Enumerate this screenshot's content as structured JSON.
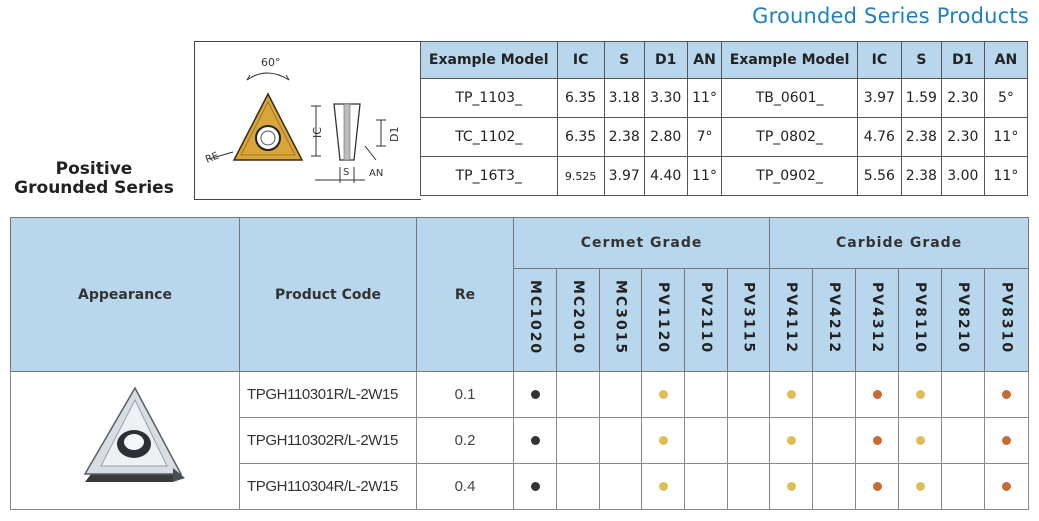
{
  "title": "Grounded Series Products",
  "series_label_line1": "Positive",
  "series_label_line2": "Grounded Series",
  "diagram": {
    "angle_label": "60°",
    "labels": [
      "RE",
      "IC",
      "D1",
      "S",
      "AN"
    ]
  },
  "spec_table": {
    "headers_left": [
      "Example Model",
      "IC",
      "S",
      "D1",
      "AN"
    ],
    "headers_right": [
      "Example Model",
      "IC",
      "S",
      "D1",
      "AN"
    ],
    "rows": [
      {
        "left": [
          "TP_1103_",
          "6.35",
          "3.18",
          "3.30",
          "11°"
        ],
        "right": [
          "TB_0601_",
          "3.97",
          "1.59",
          "2.30",
          "5°"
        ]
      },
      {
        "left": [
          "TC_1102_",
          "6.35",
          "2.38",
          "2.80",
          "7°"
        ],
        "right": [
          "TP_0802_",
          "4.76",
          "2.38",
          "2.30",
          "11°"
        ]
      },
      {
        "left": [
          "TP_16T3_",
          "9.525",
          "3.97",
          "4.40",
          "11°"
        ],
        "right": [
          "TP_0902_",
          "5.56",
          "2.38",
          "3.00",
          "11°"
        ]
      }
    ]
  },
  "main_table": {
    "headers": {
      "appearance": "Appearance",
      "product_code": "Product Code",
      "re": "Re",
      "cermet": "Cermet Grade",
      "carbide": "Carbide Grade"
    },
    "grades": [
      "MC1020",
      "MC2010",
      "MC3015",
      "PV1120",
      "PV2110",
      "PV3115",
      "PV4112",
      "PV4212",
      "PV4312",
      "PV8110",
      "PV8210",
      "PV8310"
    ],
    "rows": [
      {
        "code": "TPGH110301R/L-2W15",
        "re": "0.1",
        "marks": [
          "black",
          "",
          "",
          "gold",
          "",
          "",
          "gold",
          "",
          "copper",
          "gold",
          "",
          "copper"
        ]
      },
      {
        "code": "TPGH110302R/L-2W15",
        "re": "0.2",
        "marks": [
          "black",
          "",
          "",
          "gold",
          "",
          "",
          "gold",
          "",
          "copper",
          "gold",
          "",
          "copper"
        ]
      },
      {
        "code": "TPGH110304R/L-2W15",
        "re": "0.4",
        "marks": [
          "black",
          "",
          "",
          "gold",
          "",
          "",
          "gold",
          "",
          "copper",
          "gold",
          "",
          "copper"
        ]
      }
    ]
  },
  "colors": {
    "title": "#1f7fc0",
    "header_bg": "#b9d7ec",
    "black_dot": "#333333",
    "gold_dot": "#e2bc56",
    "copper_dot": "#c96a35",
    "insert_gold": "#d9a53b"
  }
}
